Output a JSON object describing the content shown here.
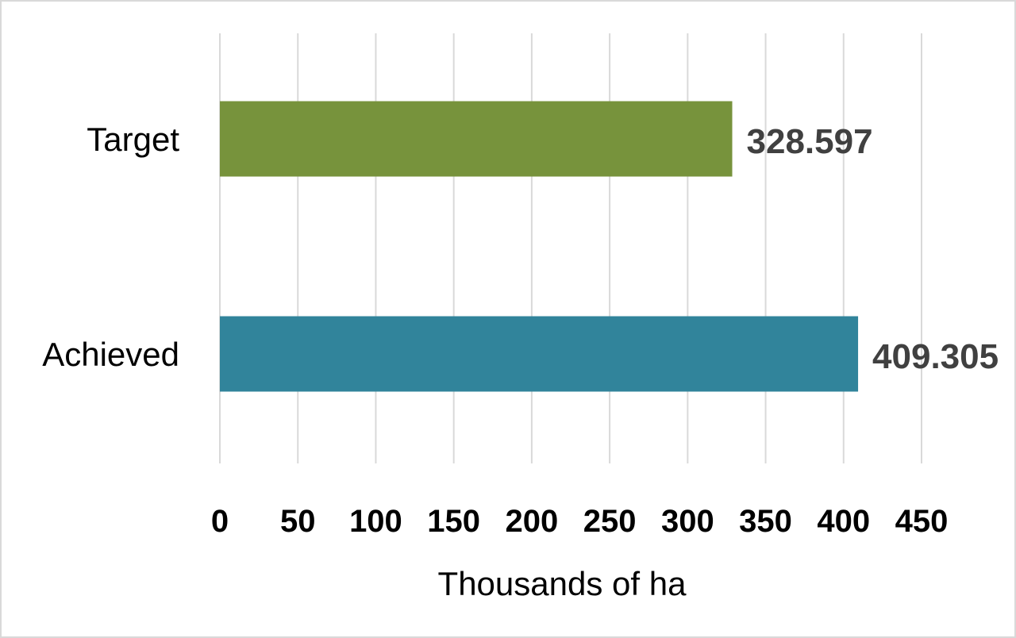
{
  "chart_data": {
    "type": "bar",
    "orientation": "horizontal",
    "categories": [
      "Target",
      "Achieved"
    ],
    "values": [
      328.597,
      409.305
    ],
    "value_labels": [
      "328.597",
      "409.305"
    ],
    "bar_colors": [
      "#77933c",
      "#31849b"
    ],
    "title": "",
    "xlabel": "Thousands of ha",
    "ylabel": "",
    "xlim": [
      0,
      450
    ],
    "x_ticks": [
      0,
      50,
      100,
      150,
      200,
      250,
      300,
      350,
      400,
      450
    ],
    "x_tick_labels": [
      "0",
      "50",
      "100",
      "150",
      "200",
      "250",
      "300",
      "350",
      "400",
      "450"
    ],
    "grid": "vertical",
    "legend": "none"
  }
}
